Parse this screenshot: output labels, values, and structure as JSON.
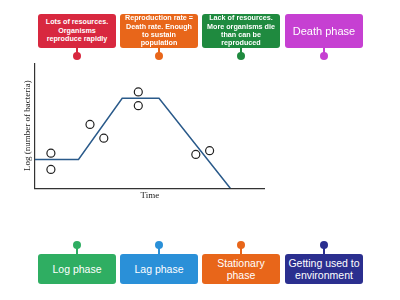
{
  "top_labels": [
    {
      "text": "Lots of resources. Organisms reproduce rapidly",
      "color": "#d8283f"
    },
    {
      "text": "Reproduction rate = Death rate. Enough to sustain population",
      "color": "#e8661a"
    },
    {
      "text": "Lack of resources. More organisms die than can be reproduced",
      "color": "#1f8a3f"
    },
    {
      "text": "Death phase",
      "color": "#c640d2"
    }
  ],
  "bottom_labels": [
    {
      "text": "Log phase",
      "color": "#2fae62"
    },
    {
      "text": "Lag phase",
      "color": "#2a90d8"
    },
    {
      "text": "Stationary phase",
      "color": "#e8661a"
    },
    {
      "text": "Getting used to environment",
      "color": "#2b2f8f"
    }
  ],
  "chart_data": {
    "type": "line",
    "x_label": "Time",
    "y_label": "Log (number of bacteria)",
    "xlim": [
      0,
      10
    ],
    "ylim": [
      0,
      10
    ],
    "tick_labels": false,
    "grid": false,
    "series": [
      {
        "type": "line",
        "color": "#2a5a8a",
        "x": [
          0,
          1.9,
          3.8,
          5.4,
          8.5
        ],
        "values": [
          2.3,
          2.3,
          7.2,
          7.2,
          0
        ]
      },
      {
        "type": "scatter",
        "marker": "circle",
        "color": "#222222",
        "x": [
          0.7,
          0.7,
          2.4,
          3.0,
          4.5,
          4.5,
          7.0,
          7.6
        ],
        "values": [
          2.8,
          1.5,
          5.1,
          4.0,
          7.7,
          6.6,
          2.7,
          3.0
        ]
      }
    ]
  }
}
